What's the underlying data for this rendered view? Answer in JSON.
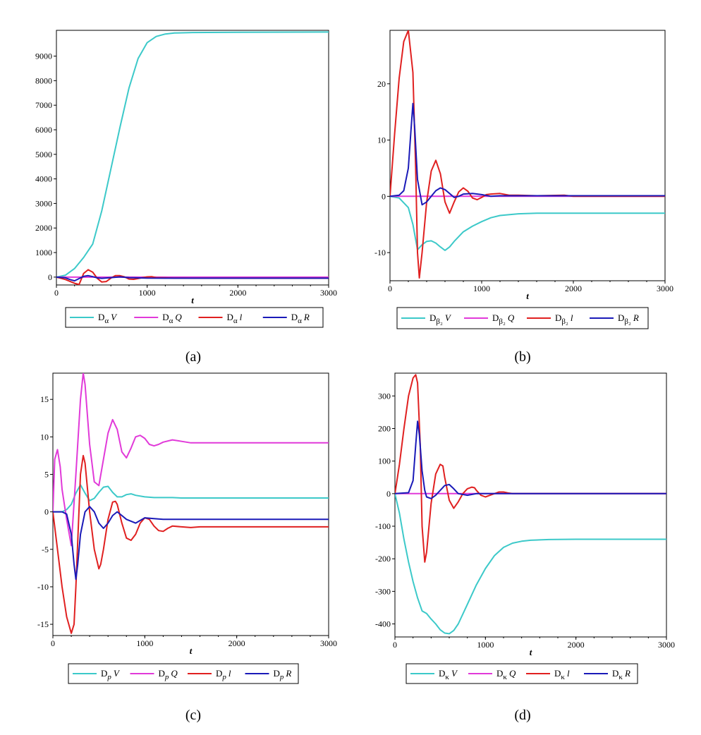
{
  "colors": {
    "cyan": "#3cc9c9",
    "magenta": "#e13ad9",
    "red": "#e02020",
    "blue": "#1a1ab8"
  },
  "chart_data": [
    {
      "type": "line",
      "caption": "(a)",
      "xlabel": "t",
      "xlim": [
        0,
        3000
      ],
      "ylim": [
        -320,
        10050
      ],
      "xticks": [
        0,
        1000,
        2000,
        3000
      ],
      "yticks": [
        0,
        1000,
        2000,
        3000,
        4000,
        5000,
        6000,
        7000,
        8000,
        9000
      ],
      "legend_sub": "α",
      "legend_sub_style": "greek",
      "series": [
        {
          "name": "D_α V",
          "color": "cyan",
          "x": [
            0,
            100,
            200,
            300,
            400,
            500,
            600,
            700,
            800,
            900,
            1000,
            1100,
            1200,
            1300,
            1500,
            2000,
            3000
          ],
          "y": [
            0,
            80,
            350,
            800,
            1350,
            2700,
            4400,
            6100,
            7700,
            8900,
            9550,
            9800,
            9900,
            9940,
            9960,
            9970,
            9980
          ]
        },
        {
          "name": "D_α Q",
          "color": "magenta",
          "x": [
            0,
            3000
          ],
          "y": [
            0,
            0
          ]
        },
        {
          "name": "D_α l",
          "color": "red",
          "x": [
            0,
            100,
            200,
            250,
            300,
            350,
            400,
            450,
            500,
            550,
            600,
            650,
            700,
            750,
            800,
            850,
            900,
            950,
            1000,
            1050,
            1100,
            1200,
            1300,
            1400,
            1500,
            2000,
            3000
          ],
          "y": [
            0,
            -100,
            -250,
            -300,
            150,
            300,
            200,
            -50,
            -200,
            -180,
            -40,
            60,
            60,
            10,
            -80,
            -90,
            -60,
            -20,
            10,
            20,
            -20,
            -30,
            -40,
            -40,
            -45,
            -45,
            -45
          ]
        },
        {
          "name": "D_α R",
          "color": "blue",
          "x": [
            0,
            100,
            150,
            200,
            250,
            300,
            350,
            400,
            450,
            500,
            600,
            700,
            800,
            1000,
            1200,
            1500,
            2000,
            3000
          ],
          "y": [
            0,
            -30,
            -100,
            -150,
            -60,
            30,
            60,
            20,
            -30,
            -50,
            -20,
            10,
            -20,
            -40,
            -45,
            -45,
            -45,
            -45
          ]
        }
      ]
    },
    {
      "type": "line",
      "caption": "(b)",
      "xlabel": "t",
      "xlim": [
        0,
        3000
      ],
      "ylim": [
        -15,
        29.5
      ],
      "xticks": [
        0,
        1000,
        2000,
        3000
      ],
      "yticks": [
        -10,
        0,
        10,
        20
      ],
      "legend_sub": "β₂",
      "legend_sub_style": "greek",
      "series": [
        {
          "name": "D_β₂ V",
          "color": "cyan",
          "x": [
            0,
            100,
            200,
            250,
            300,
            350,
            400,
            450,
            500,
            550,
            600,
            650,
            700,
            800,
            900,
            1000,
            1100,
            1200,
            1400,
            1600,
            2000,
            2500,
            3000
          ],
          "y": [
            0,
            -0.3,
            -2,
            -5,
            -9.5,
            -8.6,
            -8,
            -7.9,
            -8.3,
            -9,
            -9.6,
            -9,
            -8,
            -6.3,
            -5.3,
            -4.5,
            -3.8,
            -3.4,
            -3.1,
            -3,
            -3,
            -3,
            -3
          ]
        },
        {
          "name": "D_β₂ Q",
          "color": "magenta",
          "x": [
            0,
            3000
          ],
          "y": [
            0,
            0
          ]
        },
        {
          "name": "D_β₂ l",
          "color": "red",
          "x": [
            0,
            50,
            100,
            150,
            200,
            250,
            280,
            300,
            320,
            350,
            400,
            450,
            500,
            550,
            600,
            650,
            700,
            750,
            800,
            850,
            900,
            950,
            1000,
            1050,
            1100,
            1200,
            1300,
            1400,
            1600,
            1900,
            2000,
            3000
          ],
          "y": [
            0,
            11,
            21,
            27.5,
            29.5,
            22,
            5,
            -10,
            -14.5,
            -10,
            -1,
            4.5,
            6.4,
            4,
            -1,
            -3,
            -1,
            0.8,
            1.5,
            0.9,
            -0.3,
            -0.6,
            -0.2,
            0.3,
            0.4,
            0.5,
            0.2,
            0.2,
            0.1,
            0.2,
            0,
            0
          ]
        },
        {
          "name": "D_β₂ R",
          "color": "blue",
          "x": [
            0,
            100,
            150,
            200,
            230,
            250,
            270,
            300,
            350,
            400,
            450,
            500,
            550,
            600,
            650,
            700,
            750,
            800,
            900,
            1000,
            1100,
            1200,
            1500,
            2000,
            3000
          ],
          "y": [
            0,
            0.2,
            1,
            5,
            12,
            16.5,
            12,
            3,
            -1.5,
            -1,
            0,
            1,
            1.5,
            1.2,
            0.5,
            -0.2,
            0,
            0.4,
            0.5,
            0.3,
            0,
            0.1,
            0.1,
            0.1,
            0.1
          ]
        }
      ]
    },
    {
      "type": "line",
      "caption": "(c)",
      "xlabel": "t",
      "xlim": [
        0,
        3000
      ],
      "ylim": [
        -16.5,
        18.5
      ],
      "xticks": [
        0,
        1000,
        2000,
        3000
      ],
      "yticks": [
        -15,
        -10,
        -5,
        0,
        5,
        10,
        15
      ],
      "legend_sub": "p",
      "legend_sub_style": "italic",
      "series": [
        {
          "name": "D_p V",
          "color": "cyan",
          "x": [
            0,
            50,
            100,
            150,
            200,
            250,
            300,
            350,
            400,
            450,
            500,
            550,
            600,
            650,
            700,
            750,
            800,
            850,
            900,
            1000,
            1100,
            1200,
            1300,
            1400,
            1500,
            2000,
            3000
          ],
          "y": [
            0,
            0,
            0,
            0.3,
            1,
            2.5,
            3.6,
            2.5,
            1.5,
            1.8,
            2.6,
            3.3,
            3.4,
            2.6,
            2,
            2,
            2.3,
            2.4,
            2.2,
            2,
            1.9,
            1.9,
            1.9,
            1.85,
            1.85,
            1.85,
            1.85
          ]
        },
        {
          "name": "D_p Q",
          "color": "magenta",
          "x": [
            0,
            20,
            50,
            80,
            100,
            150,
            200,
            250,
            300,
            330,
            350,
            400,
            450,
            500,
            550,
            600,
            650,
            700,
            750,
            800,
            850,
            900,
            950,
            1000,
            1050,
            1100,
            1150,
            1200,
            1300,
            1400,
            1500,
            1600,
            1800,
            2000,
            3000
          ],
          "y": [
            0,
            7,
            8.3,
            6,
            3,
            -1,
            -4.5,
            5,
            15,
            18.5,
            17,
            9,
            4,
            3.5,
            7,
            10.5,
            12.3,
            11,
            8,
            7.2,
            8.5,
            10,
            10.2,
            9.8,
            9,
            8.8,
            9,
            9.3,
            9.6,
            9.4,
            9.2,
            9.2,
            9.2,
            9.2,
            9.2
          ]
        },
        {
          "name": "D_p l",
          "color": "red",
          "x": [
            0,
            50,
            100,
            150,
            200,
            230,
            250,
            300,
            330,
            350,
            400,
            450,
            500,
            520,
            550,
            600,
            650,
            680,
            700,
            750,
            800,
            850,
            900,
            950,
            1000,
            1050,
            1100,
            1150,
            1200,
            1250,
            1300,
            1400,
            1500,
            1600,
            1800,
            2000,
            3000
          ],
          "y": [
            0,
            -5,
            -10,
            -14,
            -16.2,
            -15,
            -10,
            5,
            7.5,
            6.5,
            0,
            -5,
            -7.6,
            -7,
            -5,
            -1,
            1.3,
            1.4,
            1,
            -1.5,
            -3.5,
            -3.8,
            -3,
            -1.5,
            -0.8,
            -1,
            -1.9,
            -2.5,
            -2.6,
            -2.2,
            -1.9,
            -2,
            -2.1,
            -2,
            -2,
            -2,
            -2
          ]
        },
        {
          "name": "D_p R",
          "color": "blue",
          "x": [
            0,
            100,
            150,
            200,
            230,
            250,
            270,
            300,
            350,
            400,
            450,
            500,
            550,
            600,
            650,
            700,
            750,
            800,
            900,
            1000,
            1100,
            1200,
            1400,
            1600,
            2000,
            3000
          ],
          "y": [
            0,
            0,
            -0.3,
            -3,
            -7,
            -9,
            -7,
            -3,
            0,
            0.7,
            0,
            -1.5,
            -2.2,
            -1.5,
            -0.5,
            0,
            -0.5,
            -1,
            -1.5,
            -0.8,
            -0.9,
            -1,
            -1,
            -1,
            -1,
            -1
          ]
        }
      ]
    },
    {
      "type": "line",
      "caption": "(d)",
      "xlabel": "t",
      "xlim": [
        0,
        3000
      ],
      "ylim": [
        -440,
        370
      ],
      "xticks": [
        0,
        1000,
        2000,
        3000
      ],
      "yticks": [
        -400,
        -300,
        -200,
        -100,
        0,
        100,
        200,
        300
      ],
      "legend_sub": "κ",
      "legend_sub_style": "greek",
      "series": [
        {
          "name": "D_κ V",
          "color": "cyan",
          "x": [
            0,
            50,
            100,
            150,
            200,
            250,
            300,
            350,
            400,
            450,
            500,
            550,
            600,
            650,
            700,
            800,
            900,
            1000,
            1100,
            1200,
            1300,
            1400,
            1500,
            1700,
            2000,
            3000
          ],
          "y": [
            0,
            -60,
            -140,
            -210,
            -270,
            -320,
            -360,
            -368,
            -385,
            -400,
            -418,
            -428,
            -430,
            -420,
            -400,
            -340,
            -280,
            -230,
            -190,
            -165,
            -152,
            -146,
            -143,
            -141,
            -140,
            -140
          ]
        },
        {
          "name": "D_κ Q",
          "color": "magenta",
          "x": [
            0,
            3000
          ],
          "y": [
            0,
            0
          ]
        },
        {
          "name": "D_κ l",
          "color": "red",
          "x": [
            0,
            50,
            100,
            150,
            200,
            230,
            250,
            280,
            300,
            330,
            350,
            400,
            450,
            500,
            530,
            550,
            600,
            650,
            700,
            750,
            800,
            850,
            880,
            900,
            950,
            1000,
            1050,
            1100,
            1150,
            1200,
            1250,
            1300,
            1400,
            1500,
            3000
          ],
          "y": [
            0,
            90,
            200,
            300,
            355,
            365,
            340,
            150,
            -100,
            -210,
            -180,
            -30,
            60,
            90,
            85,
            50,
            -20,
            -45,
            -25,
            0,
            15,
            20,
            18,
            10,
            -5,
            -10,
            -5,
            0,
            5,
            5,
            2,
            0,
            0,
            0,
            0
          ]
        },
        {
          "name": "D_κ R",
          "color": "blue",
          "x": [
            0,
            150,
            200,
            230,
            250,
            270,
            300,
            330,
            350,
            400,
            450,
            500,
            550,
            600,
            650,
            700,
            800,
            900,
            1000,
            1100,
            1200,
            1500,
            3000
          ],
          "y": [
            0,
            3,
            40,
            150,
            222,
            180,
            70,
            10,
            -10,
            -15,
            -5,
            10,
            25,
            28,
            15,
            0,
            -5,
            0,
            0,
            0,
            0,
            0,
            0
          ]
        }
      ]
    }
  ]
}
